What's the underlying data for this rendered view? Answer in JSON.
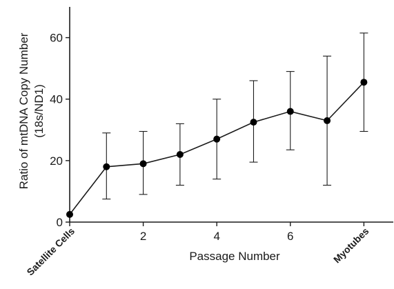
{
  "chart_data": {
    "type": "line",
    "xlabel": "Passage Number",
    "ylabel_line1": "Ratio of mtDNA Copy Number",
    "ylabel_line2": "(18s/ND1)",
    "xlim": [
      0,
      8.8
    ],
    "ylim": [
      0,
      70
    ],
    "x_ticks": [
      0,
      2,
      4,
      6,
      8
    ],
    "x_tick_labels": [
      "2",
      "4",
      "6"
    ],
    "x_tick_label_values": [
      2,
      4,
      6
    ],
    "y_ticks": [
      0,
      20,
      40,
      60
    ],
    "y_tick_labels": [
      "0",
      "20",
      "40",
      "60"
    ],
    "category_labels": [
      {
        "x": 0,
        "text": "Satellite Cells"
      },
      {
        "x": 8,
        "text": "Myotubes"
      }
    ],
    "series": [
      {
        "x": [
          0,
          1,
          2,
          3,
          4,
          5,
          6,
          7,
          8
        ],
        "y": [
          2.5,
          18,
          19,
          22,
          27,
          32.5,
          36,
          33,
          45.5
        ],
        "err_low": [
          2.5,
          7.5,
          9,
          12,
          14,
          19.5,
          23.5,
          12,
          29.5
        ],
        "err_high": [
          2.5,
          29,
          29.5,
          32,
          40,
          46,
          49,
          54,
          61.5
        ]
      }
    ],
    "marker": "filled-circle",
    "colors": {
      "line": "#1a1a1a",
      "marker": "#000000"
    },
    "grid": false
  }
}
